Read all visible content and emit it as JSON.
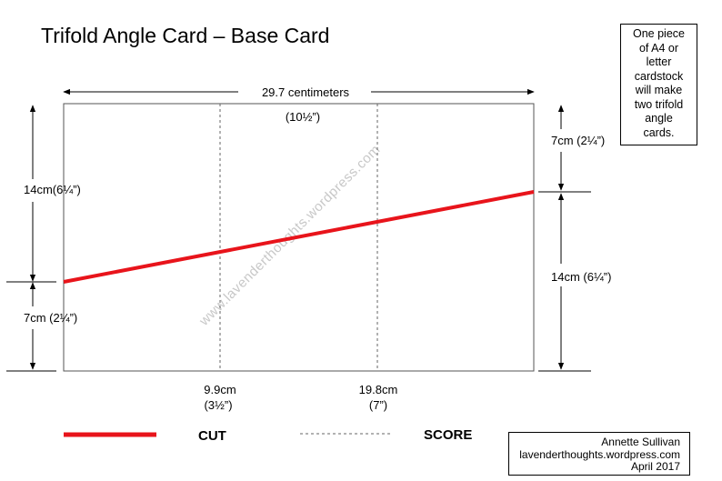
{
  "title": "Trifold Angle Card – Base Card",
  "note": {
    "lines": [
      "One piece",
      "of A4 or",
      "letter",
      "cardstock",
      "will make",
      "two trifold",
      "angle",
      "cards."
    ]
  },
  "dimensions": {
    "width_cm": "29.7 centimeters",
    "width_in": "(10½”)",
    "left_upper": "14cm(6¼”)",
    "left_lower": "7cm (2¼”)",
    "right_upper": "7cm (2¼”)",
    "right_lower": "14cm (6¼”)",
    "score1_cm": "9.9cm",
    "score1_in": "(3½”)",
    "score2_cm": "19.8cm",
    "score2_in": "(7”)"
  },
  "watermark": "www.lavenderthoughts.wordpress.com",
  "legend": {
    "cut": "CUT",
    "score": "SCORE"
  },
  "credit": {
    "lines": [
      "Annette Sullivan",
      "lavenderthoughts.wordpress.com",
      "April 2017"
    ]
  },
  "colors": {
    "cut_line": "#e8141b",
    "outline": "#555555",
    "score_line": "#666666",
    "watermark": "#c8c8c8"
  }
}
